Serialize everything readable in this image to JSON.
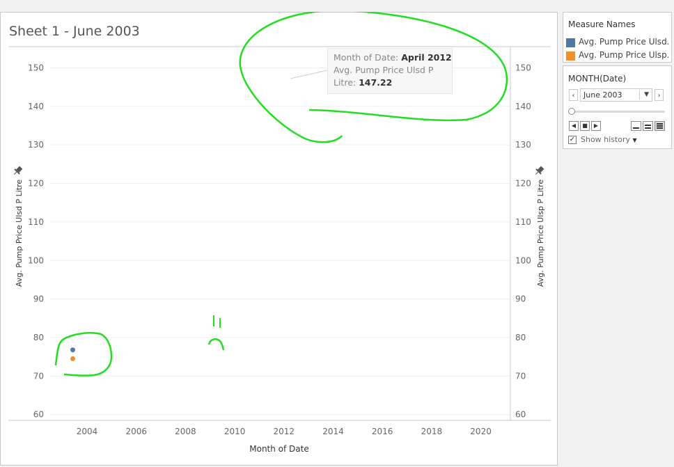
{
  "sheet": {
    "title": "Sheet 1 - June 2003"
  },
  "legend": {
    "title": "Measure Names",
    "items": [
      {
        "label": "Avg. Pump Price Ulsd..",
        "color": "#4e79a7"
      },
      {
        "label": "Avg. Pump Price Ulsp..",
        "color": "#f28e2b"
      }
    ]
  },
  "pages": {
    "title": "MONTH(Date)",
    "current": "June 2003",
    "show_history_label": "Show history",
    "show_history_checked": true,
    "icons": {
      "prev": "chevron-left-icon",
      "next": "chevron-right-icon",
      "play_back": "play-backward-icon",
      "stop": "stop-icon",
      "play_forward": "play-forward-icon",
      "speed_slow": "speed-slow-icon",
      "speed_medium": "speed-medium-icon",
      "speed_fast": "speed-fast-icon"
    }
  },
  "tooltip": {
    "line1_label": "Month of Date:",
    "line1_value": "April 2012",
    "line2_label": "Avg. Pump Price Ulsd P",
    "line3_label": "Litre:",
    "line3_value": "147.22"
  },
  "chart_data": {
    "type": "scatter",
    "xlabel": "Month of Date",
    "ylabel_left": "Avg. Pump Price Ulsd P Litre",
    "ylabel_right": "Avg. Pump Price Ulsp P Litre",
    "x_ticks": [
      "2004",
      "2006",
      "2008",
      "2010",
      "2012",
      "2014",
      "2016",
      "2018",
      "2020"
    ],
    "y_ticks": [
      60,
      70,
      80,
      90,
      100,
      110,
      120,
      130,
      140,
      150
    ],
    "xlim": [
      2002.5,
      2021.2
    ],
    "ylim": [
      58.5,
      155.5
    ],
    "grid": true,
    "series": [
      {
        "name": "Avg. Pump Price Ulsd..",
        "color": "#4e79a7",
        "points": [
          {
            "x": 2003.42,
            "y": 76.8
          }
        ]
      },
      {
        "name": "Avg. Pump Price Ulsp..",
        "color": "#f28e2b",
        "points": [
          {
            "x": 2003.42,
            "y": 74.5
          }
        ]
      }
    ]
  }
}
